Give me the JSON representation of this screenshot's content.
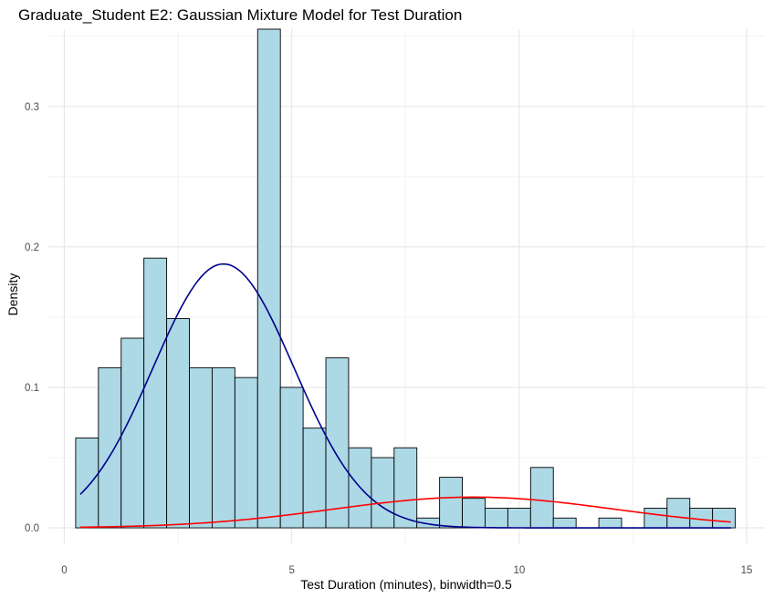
{
  "chart_data": {
    "type": "histogram",
    "title": "Graduate_Student E2: Gaussian Mixture Model for Test Duration",
    "xlabel": "Test Duration (minutes), binwidth=0.5",
    "ylabel": "Density",
    "xlim": [
      -0.35,
      15.4
    ],
    "ylim": [
      -0.011,
      0.355
    ],
    "x_ticks": [
      0,
      5,
      10,
      15
    ],
    "x_tick_labels": [
      "0",
      "5",
      "10",
      "15"
    ],
    "y_ticks": [
      0.0,
      0.1,
      0.2,
      0.3
    ],
    "y_tick_labels": [
      "0.0",
      "0.1",
      "0.2",
      "0.3"
    ],
    "binwidth": 0.5,
    "bins": [
      {
        "x0": 0.25,
        "x1": 0.75,
        "density": 0.064
      },
      {
        "x0": 0.75,
        "x1": 1.25,
        "density": 0.114
      },
      {
        "x0": 1.25,
        "x1": 1.75,
        "density": 0.135
      },
      {
        "x0": 1.75,
        "x1": 2.25,
        "density": 0.192
      },
      {
        "x0": 2.25,
        "x1": 2.75,
        "density": 0.149
      },
      {
        "x0": 2.75,
        "x1": 3.25,
        "density": 0.114
      },
      {
        "x0": 3.25,
        "x1": 3.75,
        "density": 0.114
      },
      {
        "x0": 3.75,
        "x1": 4.25,
        "density": 0.107
      },
      {
        "x0": 4.25,
        "x1": 4.75,
        "density": 0.355
      },
      {
        "x0": 4.75,
        "x1": 5.25,
        "density": 0.1
      },
      {
        "x0": 5.25,
        "x1": 5.75,
        "density": 0.071
      },
      {
        "x0": 5.75,
        "x1": 6.25,
        "density": 0.121
      },
      {
        "x0": 6.25,
        "x1": 6.75,
        "density": 0.057
      },
      {
        "x0": 6.75,
        "x1": 7.25,
        "density": 0.05
      },
      {
        "x0": 7.25,
        "x1": 7.75,
        "density": 0.057
      },
      {
        "x0": 7.75,
        "x1": 8.25,
        "density": 0.007
      },
      {
        "x0": 8.25,
        "x1": 8.75,
        "density": 0.036
      },
      {
        "x0": 8.75,
        "x1": 9.25,
        "density": 0.021
      },
      {
        "x0": 9.25,
        "x1": 9.75,
        "density": 0.014
      },
      {
        "x0": 9.75,
        "x1": 10.25,
        "density": 0.014
      },
      {
        "x0": 10.25,
        "x1": 10.75,
        "density": 0.043
      },
      {
        "x0": 10.75,
        "x1": 11.25,
        "density": 0.007
      },
      {
        "x0": 11.25,
        "x1": 11.75,
        "density": 0.0
      },
      {
        "x0": 11.75,
        "x1": 12.25,
        "density": 0.007
      },
      {
        "x0": 12.25,
        "x1": 12.75,
        "density": 0.0
      },
      {
        "x0": 12.75,
        "x1": 13.25,
        "density": 0.014
      },
      {
        "x0": 13.25,
        "x1": 13.75,
        "density": 0.021
      },
      {
        "x0": 13.75,
        "x1": 14.25,
        "density": 0.014
      },
      {
        "x0": 14.25,
        "x1": 14.75,
        "density": 0.014
      }
    ],
    "curves": [
      {
        "color": "#00008b",
        "mean": 3.5,
        "sd": 1.55,
        "weight": 0.73,
        "x_range": [
          0.35,
          14.65
        ]
      },
      {
        "color": "#ff0000",
        "mean": 9.0,
        "sd": 3.1,
        "weight": 0.17,
        "x_range": [
          0.35,
          14.65
        ]
      }
    ],
    "bar_fill": "#add8e6",
    "bar_stroke": "#000000",
    "grid": true,
    "legend": "none"
  }
}
